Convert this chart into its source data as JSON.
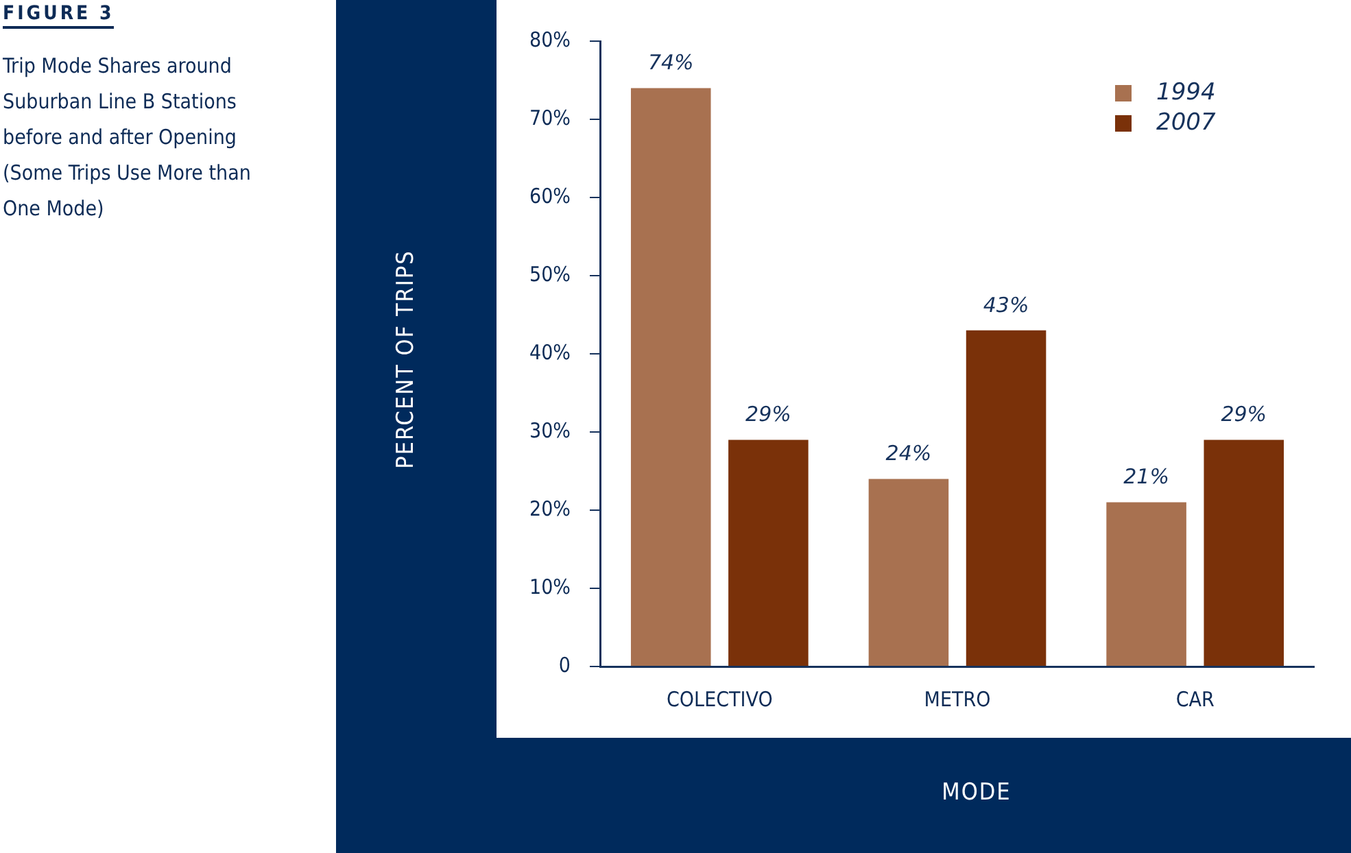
{
  "chart_data": {
    "type": "bar",
    "title": "Trip Mode Shares around Suburban Line B Stations before and after Opening (Some Trips Use More than One Mode)",
    "annotations": [
      "FIGURE 3"
    ],
    "xlabel": "MODE",
    "ylabel": "PERCENT OF TRIPS",
    "categories": [
      "COLECTIVO",
      "METRO",
      "CAR"
    ],
    "series": [
      {
        "name": "1994",
        "color": "#a87150",
        "values": [
          74,
          24,
          21
        ],
        "value_labels": [
          "74%",
          "24%",
          "21%"
        ]
      },
      {
        "name": "2007",
        "color": "#7a3109",
        "values": [
          29,
          43,
          29
        ],
        "value_labels": [
          "29%",
          "43%",
          "29%"
        ]
      }
    ],
    "ylim": [
      0,
      80
    ],
    "yticks": [
      0,
      {
        "value": 10,
        "label": "10%"
      },
      {
        "value": 20,
        "label": "20%"
      },
      {
        "value": 30,
        "label": "30%"
      },
      {
        "value": 40,
        "label": "40%"
      },
      {
        "value": 50,
        "label": "50%"
      },
      {
        "value": 60,
        "label": "60%"
      },
      {
        "value": 70,
        "label": "70%"
      },
      {
        "value": 80,
        "label": "80%"
      }
    ],
    "grid": false,
    "legend": "top right"
  }
}
